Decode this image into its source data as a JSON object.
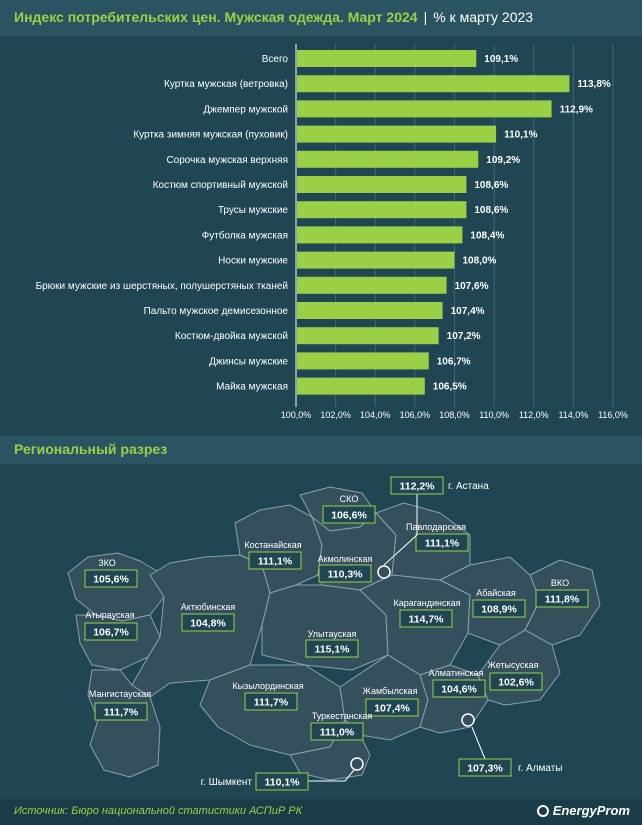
{
  "header": {
    "title": "Индекс потребительских цен. Мужская одежда. Март 2024",
    "separator": "|",
    "subtitle": "% к марту 2023"
  },
  "colors": {
    "background": "#1f4652",
    "bar": "#9bd046",
    "accent": "#9bd046",
    "region_fill": "#34505c",
    "region_stroke": "#8aa3ab"
  },
  "chart_data": {
    "type": "bar",
    "orientation": "horizontal",
    "categories": [
      "Всего",
      "Куртка мужская (ветровка)",
      "Джемпер мужской",
      "Куртка зимняя мужская (пуховик)",
      "Сорочка мужская верхняя",
      "Костюм спортивный мужской",
      "Трусы мужские",
      "Футболка мужская",
      "Носки мужские",
      "Брюки мужские из шерстяных, полушерстяных тканей",
      "Пальто мужское демисезонное",
      "Костюм-двойка мужской",
      "Джинсы мужские",
      "Майка мужская"
    ],
    "values": [
      109.1,
      113.8,
      112.9,
      110.1,
      109.2,
      108.6,
      108.6,
      108.4,
      108.0,
      107.6,
      107.4,
      107.2,
      106.7,
      106.5
    ],
    "value_labels": [
      "109,1%",
      "113,8%",
      "112,9%",
      "110,1%",
      "109,2%",
      "108,6%",
      "108,6%",
      "108,4%",
      "108,0%",
      "107,6%",
      "107,4%",
      "107,2%",
      "106,7%",
      "106,5%"
    ],
    "xlim": [
      100,
      116
    ],
    "xticks": [
      100,
      102,
      104,
      106,
      108,
      110,
      112,
      114,
      116
    ],
    "xtick_labels": [
      "100,0%",
      "102,0%",
      "104,0%",
      "106,0%",
      "108,0%",
      "110,0%",
      "112,0%",
      "114,0%",
      "116,0%"
    ],
    "grid": true
  },
  "regional": {
    "title": "Региональный разрез",
    "regions": [
      {
        "name": "ЗКО",
        "value": "105,6%"
      },
      {
        "name": "Атырауская",
        "value": "106,7%"
      },
      {
        "name": "Мангистауская",
        "value": "111,7%"
      },
      {
        "name": "Актюбинская",
        "value": "104,8%"
      },
      {
        "name": "Костанайская",
        "value": "111,1%"
      },
      {
        "name": "СКО",
        "value": "106,6%"
      },
      {
        "name": "Акмолинская",
        "value": "110,3%"
      },
      {
        "name": "Павлодарская",
        "value": "111,1%"
      },
      {
        "name": "Карагандинская",
        "value": "114,7%"
      },
      {
        "name": "Улытауская",
        "value": "115,1%"
      },
      {
        "name": "Абайская",
        "value": "108,9%"
      },
      {
        "name": "ВКО",
        "value": "111,8%"
      },
      {
        "name": "Кызылординская",
        "value": "111,7%"
      },
      {
        "name": "Жамбылская",
        "value": "107,4%"
      },
      {
        "name": "Туркестанская",
        "value": "111,0%"
      },
      {
        "name": "Алматинская",
        "value": "104,6%"
      },
      {
        "name": "Жетысуская",
        "value": "102,6%"
      }
    ],
    "cities": [
      {
        "name": "г. Астана",
        "value": "112,2%"
      },
      {
        "name": "г. Алматы",
        "value": "107,3%"
      },
      {
        "name": "г. Шымкент",
        "value": "110,1%"
      }
    ]
  },
  "footer": {
    "source": "Источник: Бюро национальной статистики АСПиР РК",
    "logo": "EnergyProm"
  }
}
